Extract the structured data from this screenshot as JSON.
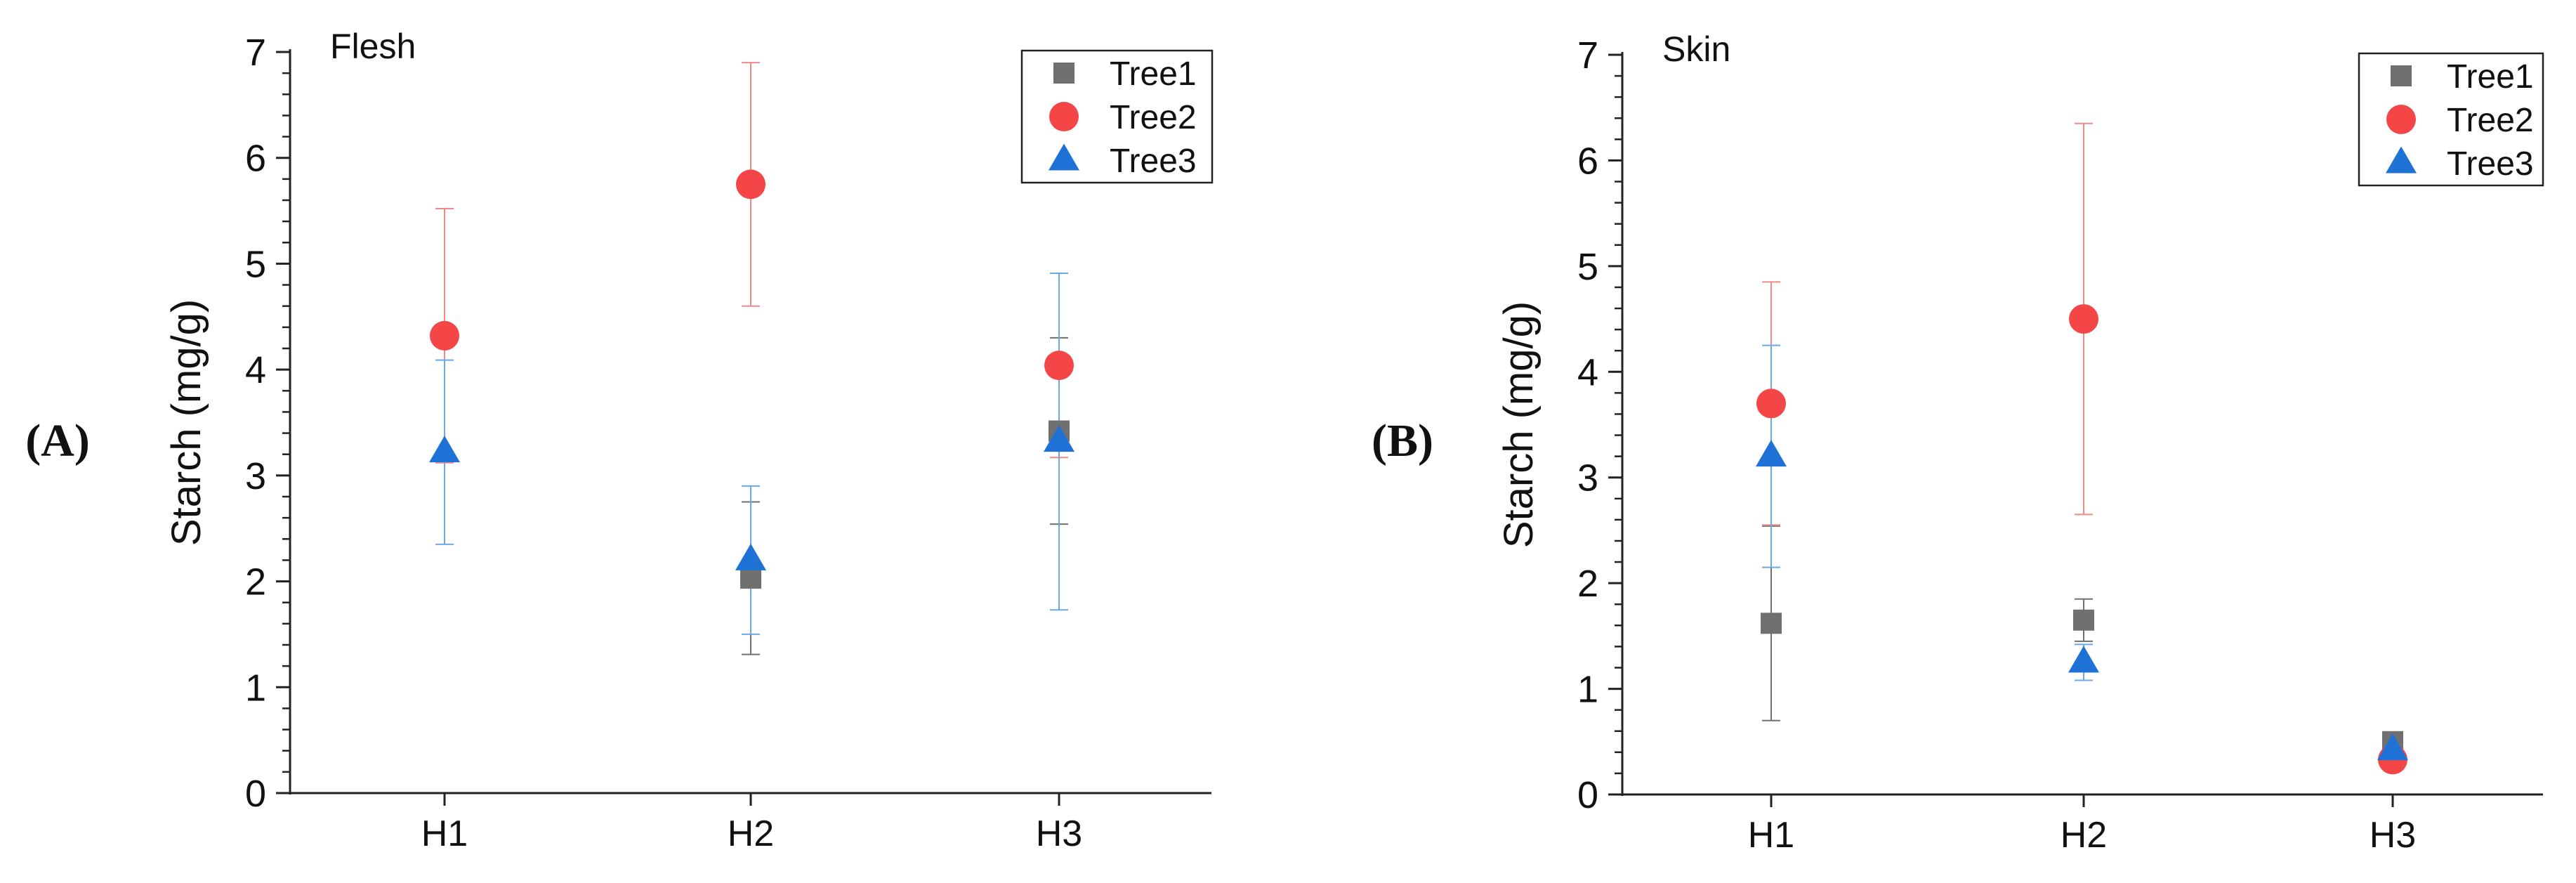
{
  "panels": [
    {
      "label": "(A)",
      "chart_data": {
        "type": "scatter",
        "title": "Flesh",
        "xlabel": "",
        "ylabel": "Starch (mg/g)",
        "categories": [
          "H1",
          "H2",
          "H3"
        ],
        "ylim": [
          0,
          7
        ],
        "yticks": [
          "0",
          "1",
          "2",
          "3",
          "4",
          "5",
          "6",
          "7"
        ],
        "legend_position": "top-right",
        "series": [
          {
            "name": "Tree1",
            "marker": "square",
            "color": "#707070",
            "errcolor": "#707070",
            "values": [
              null,
              2.03,
              3.42
            ],
            "errors": [
              null,
              0.72,
              0.88
            ]
          },
          {
            "name": "Tree2",
            "marker": "circle",
            "color": "#f44646",
            "errcolor": "#f08a8a",
            "values": [
              4.32,
              5.75,
              4.04
            ],
            "errors": [
              1.2,
              1.15,
              0.87
            ]
          },
          {
            "name": "Tree3",
            "marker": "triangle",
            "color": "#1e72d6",
            "errcolor": "#6aa9e8",
            "values": [
              3.22,
              2.2,
              3.32
            ],
            "errors": [
              0.87,
              0.7,
              1.59
            ]
          }
        ]
      }
    },
    {
      "label": "(B)",
      "chart_data": {
        "type": "scatter",
        "title": "Skin",
        "xlabel": "",
        "ylabel": "Starch (mg/g)",
        "categories": [
          "H1",
          "H2",
          "H3"
        ],
        "ylim": [
          0,
          7
        ],
        "yticks": [
          "0",
          "1",
          "2",
          "3",
          "4",
          "5",
          "6",
          "7"
        ],
        "legend_position": "top-right",
        "series": [
          {
            "name": "Tree1",
            "marker": "square",
            "color": "#707070",
            "errcolor": "#707070",
            "values": [
              1.62,
              1.65,
              0.5
            ],
            "errors": [
              0.92,
              0.2,
              0.02
            ]
          },
          {
            "name": "Tree2",
            "marker": "circle",
            "color": "#f44646",
            "errcolor": "#f08a8a",
            "values": [
              3.7,
              4.5,
              0.33
            ],
            "errors": [
              1.15,
              1.85,
              0.02
            ]
          },
          {
            "name": "Tree3",
            "marker": "triangle",
            "color": "#1e72d6",
            "errcolor": "#6aa9e8",
            "values": [
              3.2,
              1.25,
              0.42
            ],
            "errors": [
              1.05,
              0.17,
              0.02
            ]
          }
        ]
      }
    }
  ]
}
